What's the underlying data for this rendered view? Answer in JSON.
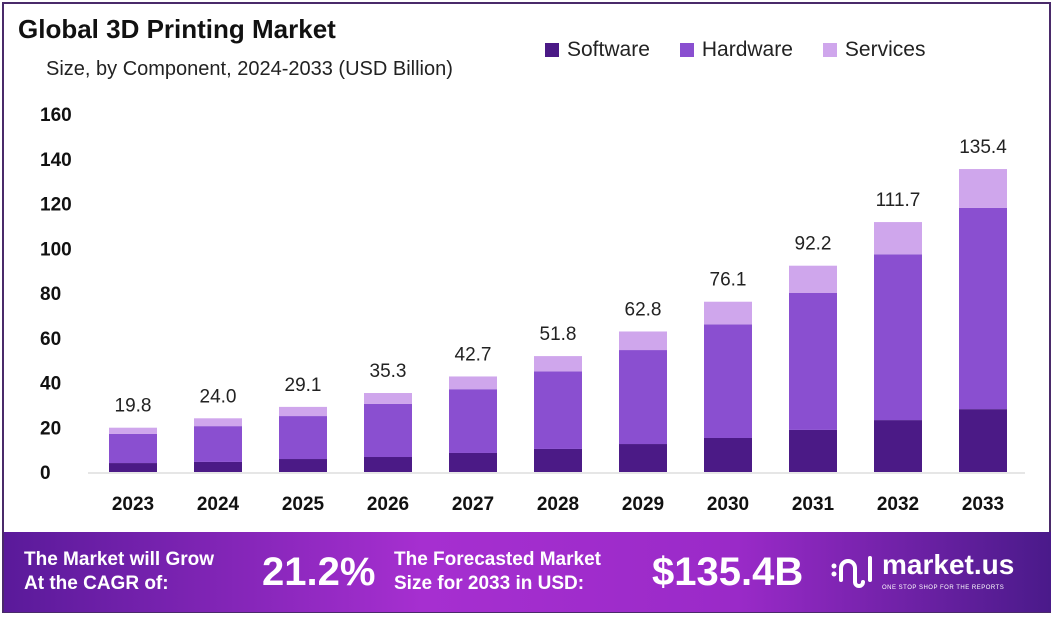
{
  "chart_data": {
    "type": "bar",
    "stacked": true,
    "title": "Global 3D Printing Market",
    "subtitle": "Size, by Component, 2024-2033 (USD Billion)",
    "categories": [
      "2023",
      "2024",
      "2025",
      "2026",
      "2027",
      "2028",
      "2029",
      "2030",
      "2031",
      "2032",
      "2033"
    ],
    "series": [
      {
        "name": "Software",
        "color": "#4b1a86",
        "values": [
          4.0,
          4.5,
          5.8,
          6.7,
          8.5,
          10.3,
          12.5,
          15.2,
          18.8,
          23.2,
          28.1
        ]
      },
      {
        "name": "Hardware",
        "color": "#8a4fd0",
        "values": [
          13.0,
          16.0,
          19.2,
          23.7,
          28.5,
          34.7,
          42.0,
          50.8,
          61.2,
          74.1,
          89.9
        ]
      },
      {
        "name": "Services",
        "color": "#cfa6ec",
        "values": [
          2.8,
          3.5,
          4.1,
          4.9,
          5.7,
          6.8,
          8.3,
          10.1,
          12.2,
          14.4,
          17.4
        ]
      }
    ],
    "totals": [
      "19.8",
      "24.0",
      "29.1",
      "35.3",
      "42.7",
      "51.8",
      "62.8",
      "76.1",
      "92.2",
      "111.7",
      "135.4"
    ],
    "yticks": [
      "0",
      "20",
      "40",
      "60",
      "80",
      "100",
      "120",
      "140",
      "160"
    ],
    "ylim": [
      0,
      160
    ],
    "grid": false,
    "legend": "top-right"
  },
  "banner": {
    "cagr_label_1": "The Market will Grow",
    "cagr_label_2": "At the CAGR of:",
    "cagr_value": "21.2%",
    "forecast_label_1": "The Forecasted Market",
    "forecast_label_2": "Size for 2033 in USD:",
    "forecast_value": "$135.4B",
    "logo_text": "market.us",
    "logo_tagline": "ONE STOP SHOP FOR THE REPORTS"
  }
}
